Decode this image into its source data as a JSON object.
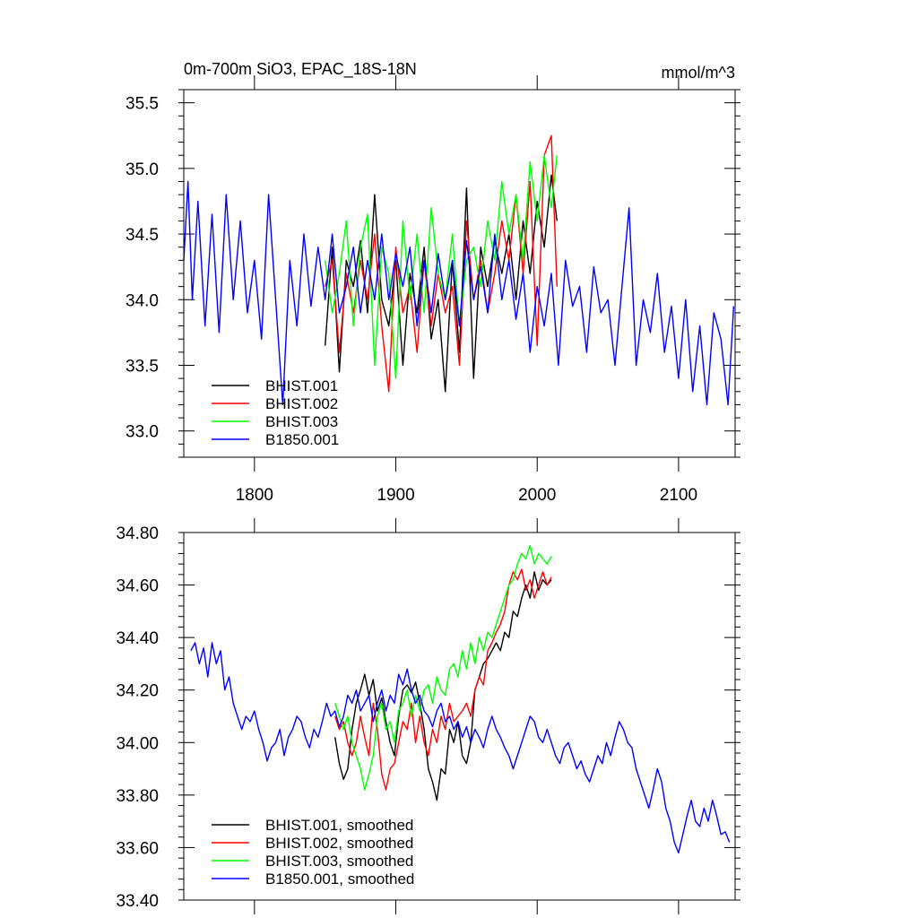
{
  "chart_data": [
    {
      "type": "line",
      "title": "0m-700m SiO3, EPAC_18S-18N",
      "units": "mmol/m^3",
      "xlabel": "",
      "ylabel": "",
      "xlim": [
        1750,
        2140
      ],
      "ylim": [
        32.8,
        35.6
      ],
      "x_ticks": [
        1800,
        1900,
        2000,
        2100
      ],
      "x_tick_labels": [
        "1800",
        "1900",
        "2000",
        "2100"
      ],
      "y_ticks": [
        33.0,
        33.5,
        34.0,
        34.5,
        35.0,
        35.5
      ],
      "y_tick_labels": [
        "33.0",
        "33.5",
        "34.0",
        "34.5",
        "35.0",
        "35.5"
      ],
      "legend_position": "bottom-left",
      "series": [
        {
          "name": "BHIST.001",
          "color": "#000000",
          "x": [
            1850,
            1855,
            1860,
            1865,
            1870,
            1875,
            1880,
            1885,
            1890,
            1895,
            1900,
            1905,
            1910,
            1915,
            1920,
            1925,
            1930,
            1935,
            1940,
            1945,
            1950,
            1955,
            1960,
            1965,
            1970,
            1975,
            1980,
            1985,
            1990,
            1995,
            2000,
            2005,
            2010,
            2014
          ],
          "y": [
            33.65,
            34.4,
            33.45,
            34.3,
            34.1,
            34.45,
            33.9,
            34.8,
            34.0,
            33.8,
            34.3,
            33.5,
            34.2,
            33.9,
            34.4,
            33.7,
            34.0,
            33.3,
            34.3,
            33.6,
            34.85,
            33.4,
            34.4,
            34.1,
            34.45,
            34.2,
            34.5,
            34.0,
            34.6,
            34.2,
            34.75,
            34.4,
            34.95,
            34.6
          ]
        },
        {
          "name": "BHIST.002",
          "color": "#ff0000",
          "x": [
            1850,
            1855,
            1860,
            1865,
            1870,
            1875,
            1880,
            1885,
            1890,
            1895,
            1900,
            1905,
            1910,
            1915,
            1920,
            1925,
            1930,
            1935,
            1940,
            1945,
            1950,
            1955,
            1960,
            1965,
            1970,
            1975,
            1980,
            1985,
            1990,
            1995,
            2000,
            2005,
            2010,
            2014
          ],
          "y": [
            34.1,
            34.3,
            33.6,
            34.2,
            33.9,
            34.3,
            34.0,
            34.5,
            33.8,
            33.3,
            34.4,
            33.9,
            34.1,
            33.6,
            34.3,
            33.8,
            34.2,
            33.9,
            34.1,
            33.5,
            34.6,
            34.0,
            34.3,
            33.9,
            34.2,
            34.6,
            34.3,
            34.8,
            34.2,
            34.9,
            33.65,
            35.1,
            35.25,
            34.1
          ]
        },
        {
          "name": "BHIST.003",
          "color": "#00ff00",
          "x": [
            1850,
            1855,
            1860,
            1865,
            1870,
            1875,
            1880,
            1885,
            1890,
            1895,
            1900,
            1905,
            1910,
            1915,
            1920,
            1925,
            1930,
            1935,
            1940,
            1945,
            1950,
            1955,
            1960,
            1965,
            1970,
            1975,
            1980,
            1985,
            1990,
            1995,
            2000,
            2005,
            2010,
            2014
          ],
          "y": [
            34.3,
            33.9,
            34.2,
            34.6,
            33.8,
            34.4,
            34.65,
            33.5,
            34.4,
            34.2,
            33.4,
            34.6,
            34.0,
            34.5,
            33.9,
            34.7,
            34.2,
            34.0,
            34.5,
            33.8,
            34.3,
            34.4,
            34.1,
            34.6,
            34.3,
            34.9,
            34.5,
            34.8,
            34.3,
            35.05,
            34.6,
            35.1,
            34.7,
            35.1
          ]
        },
        {
          "name": "B1850.001",
          "color": "#0000ff",
          "x": [
            1750,
            1753,
            1756,
            1760,
            1765,
            1770,
            1775,
            1780,
            1785,
            1790,
            1795,
            1800,
            1805,
            1810,
            1815,
            1820,
            1825,
            1830,
            1835,
            1840,
            1845,
            1850,
            1855,
            1860,
            1865,
            1870,
            1875,
            1880,
            1885,
            1890,
            1895,
            1900,
            1905,
            1910,
            1915,
            1920,
            1925,
            1930,
            1935,
            1940,
            1945,
            1950,
            1955,
            1960,
            1965,
            1970,
            1975,
            1980,
            1985,
            1990,
            1995,
            2000,
            2005,
            2010,
            2015,
            2020,
            2025,
            2030,
            2035,
            2040,
            2045,
            2050,
            2055,
            2060,
            2065,
            2070,
            2075,
            2080,
            2085,
            2090,
            2095,
            2100,
            2105,
            2110,
            2115,
            2120,
            2125,
            2130,
            2135,
            2139
          ],
          "y": [
            34.3,
            34.9,
            34.0,
            34.75,
            33.8,
            34.65,
            33.75,
            34.8,
            34.0,
            34.6,
            33.9,
            34.3,
            33.7,
            34.8,
            34.0,
            33.2,
            34.3,
            33.8,
            34.5,
            33.95,
            34.4,
            34.0,
            34.5,
            33.9,
            34.1,
            34.4,
            33.9,
            34.3,
            34.0,
            34.5,
            34.0,
            34.35,
            34.1,
            34.4,
            33.8,
            34.3,
            33.9,
            34.35,
            34.0,
            34.3,
            33.8,
            34.45,
            34.0,
            34.25,
            33.9,
            34.5,
            34.0,
            34.3,
            33.85,
            34.2,
            33.6,
            34.1,
            33.8,
            34.2,
            33.5,
            34.3,
            33.95,
            34.1,
            33.6,
            34.25,
            33.9,
            34.0,
            33.5,
            34.1,
            34.7,
            33.5,
            34.0,
            33.75,
            34.2,
            33.6,
            33.95,
            33.4,
            34.0,
            33.3,
            33.8,
            33.2,
            33.9,
            33.7,
            33.2,
            33.95
          ]
        }
      ]
    },
    {
      "type": "line",
      "title": "",
      "xlabel": "",
      "ylabel": "",
      "xlim": [
        1750,
        2140
      ],
      "ylim": [
        33.4,
        34.8
      ],
      "x_ticks": [
        1800,
        1900,
        2000,
        2100
      ],
      "x_tick_labels": [],
      "y_ticks": [
        33.4,
        33.6,
        33.8,
        34.0,
        34.2,
        34.4,
        34.6,
        34.8
      ],
      "y_tick_labels": [
        "33.40",
        "33.60",
        "33.80",
        "34.00",
        "34.20",
        "34.40",
        "34.60",
        "34.80"
      ],
      "legend_position": "bottom-left",
      "series": [
        {
          "name": "BHIST.001, smoothed",
          "color": "#000000",
          "x": [
            1857,
            1860,
            1863,
            1866,
            1869,
            1872,
            1875,
            1878,
            1881,
            1884,
            1887,
            1890,
            1893,
            1896,
            1899,
            1902,
            1905,
            1908,
            1911,
            1914,
            1917,
            1920,
            1923,
            1926,
            1929,
            1932,
            1935,
            1938,
            1941,
            1944,
            1947,
            1950,
            1953,
            1956,
            1959,
            1962,
            1965,
            1968,
            1971,
            1974,
            1977,
            1980,
            1983,
            1986,
            1989,
            1992,
            1995,
            1998,
            2001,
            2004,
            2007,
            2010
          ],
          "y": [
            34.02,
            33.92,
            33.86,
            33.9,
            34.05,
            34.15,
            34.2,
            34.26,
            34.18,
            34.24,
            34.12,
            34.17,
            34.08,
            34.0,
            33.95,
            34.1,
            34.2,
            34.22,
            34.19,
            34.23,
            34.15,
            34.05,
            33.9,
            33.85,
            33.78,
            33.9,
            33.88,
            34.05,
            34.0,
            34.08,
            33.95,
            33.92,
            34.0,
            34.2,
            34.25,
            34.3,
            34.32,
            34.35,
            34.38,
            34.35,
            34.42,
            34.4,
            34.5,
            34.48,
            34.55,
            34.6,
            34.55,
            34.65,
            34.58,
            34.62,
            34.6,
            34.62
          ]
        },
        {
          "name": "BHIST.002, smoothed",
          "color": "#ff0000",
          "x": [
            1857,
            1860,
            1863,
            1866,
            1869,
            1872,
            1875,
            1878,
            1881,
            1884,
            1887,
            1890,
            1893,
            1896,
            1899,
            1902,
            1905,
            1908,
            1911,
            1914,
            1917,
            1920,
            1923,
            1926,
            1929,
            1932,
            1935,
            1938,
            1941,
            1944,
            1947,
            1950,
            1953,
            1956,
            1959,
            1962,
            1965,
            1968,
            1971,
            1974,
            1977,
            1980,
            1983,
            1986,
            1989,
            1992,
            1995,
            1998,
            2001,
            2004,
            2007,
            2010
          ],
          "y": [
            34.1,
            34.05,
            34.08,
            34.0,
            33.95,
            34.0,
            34.1,
            34.02,
            33.95,
            34.15,
            34.05,
            33.88,
            33.82,
            33.9,
            33.92,
            34.0,
            34.08,
            34.05,
            34.15,
            34.0,
            34.1,
            34.0,
            33.95,
            34.05,
            34.0,
            34.1,
            34.05,
            34.15,
            34.08,
            34.1,
            34.12,
            34.15,
            34.1,
            34.2,
            34.25,
            34.22,
            34.35,
            34.38,
            34.42,
            34.45,
            34.5,
            34.6,
            34.65,
            34.62,
            34.66,
            34.58,
            34.62,
            34.55,
            34.6,
            34.65,
            34.6,
            34.63
          ]
        },
        {
          "name": "BHIST.003, smoothed",
          "color": "#00ff00",
          "x": [
            1857,
            1860,
            1863,
            1866,
            1869,
            1872,
            1875,
            1878,
            1881,
            1884,
            1887,
            1890,
            1893,
            1896,
            1899,
            1902,
            1905,
            1908,
            1911,
            1914,
            1917,
            1920,
            1923,
            1926,
            1929,
            1932,
            1935,
            1938,
            1941,
            1944,
            1947,
            1950,
            1953,
            1956,
            1959,
            1962,
            1965,
            1968,
            1971,
            1974,
            1977,
            1980,
            1983,
            1986,
            1989,
            1992,
            1995,
            1998,
            2001,
            2004,
            2007,
            2010
          ],
          "y": [
            34.15,
            34.1,
            34.05,
            34.1,
            34.0,
            33.95,
            33.9,
            33.82,
            33.88,
            33.95,
            34.1,
            34.15,
            34.05,
            34.08,
            34.0,
            34.12,
            34.15,
            34.2,
            34.1,
            34.18,
            34.12,
            34.2,
            34.22,
            34.15,
            34.25,
            34.2,
            34.18,
            34.28,
            34.3,
            34.25,
            34.35,
            34.28,
            34.38,
            34.3,
            34.4,
            34.35,
            34.42,
            34.4,
            34.45,
            34.5,
            34.55,
            34.6,
            34.62,
            34.68,
            34.72,
            34.7,
            34.75,
            34.68,
            34.72,
            34.7,
            34.68,
            34.71
          ]
        },
        {
          "name": "B1850.001, smoothed",
          "color": "#0000ff",
          "x": [
            1755,
            1758,
            1761,
            1764,
            1767,
            1770,
            1773,
            1776,
            1779,
            1782,
            1785,
            1788,
            1791,
            1794,
            1797,
            1800,
            1803,
            1806,
            1809,
            1812,
            1815,
            1818,
            1821,
            1824,
            1827,
            1830,
            1833,
            1836,
            1839,
            1842,
            1845,
            1848,
            1851,
            1854,
            1857,
            1860,
            1863,
            1866,
            1869,
            1872,
            1875,
            1878,
            1881,
            1884,
            1887,
            1890,
            1893,
            1896,
            1899,
            1902,
            1905,
            1908,
            1911,
            1914,
            1917,
            1920,
            1923,
            1926,
            1929,
            1932,
            1935,
            1938,
            1941,
            1944,
            1947,
            1950,
            1953,
            1956,
            1959,
            1962,
            1965,
            1968,
            1971,
            1974,
            1977,
            1980,
            1983,
            1986,
            1989,
            1992,
            1995,
            1998,
            2001,
            2004,
            2007,
            2010,
            2013,
            2016,
            2019,
            2022,
            2025,
            2028,
            2031,
            2034,
            2037,
            2040,
            2043,
            2046,
            2049,
            2052,
            2055,
            2058,
            2061,
            2064,
            2067,
            2070,
            2073,
            2076,
            2079,
            2082,
            2085,
            2088,
            2091,
            2094,
            2097,
            2100,
            2103,
            2106,
            2109,
            2112,
            2115,
            2118,
            2121,
            2124,
            2127,
            2130,
            2133,
            2136
          ],
          "y": [
            34.35,
            34.38,
            34.3,
            34.36,
            34.25,
            34.38,
            34.3,
            34.35,
            34.2,
            34.25,
            34.15,
            34.1,
            34.05,
            34.1,
            34.08,
            34.12,
            34.05,
            34.0,
            33.93,
            33.98,
            34.0,
            34.05,
            33.95,
            34.02,
            34.05,
            34.1,
            34.08,
            34.02,
            33.98,
            34.05,
            34.02,
            34.08,
            34.15,
            34.1,
            34.12,
            34.06,
            34.1,
            34.18,
            34.15,
            34.2,
            34.12,
            34.15,
            34.18,
            34.08,
            34.15,
            34.2,
            34.12,
            34.18,
            34.15,
            34.26,
            34.22,
            34.28,
            34.2,
            34.15,
            34.18,
            34.12,
            34.1,
            34.06,
            34.12,
            34.15,
            34.08,
            34.1,
            34.05,
            34.08,
            34.02,
            34.06,
            34.0,
            34.05,
            34.02,
            33.98,
            34.05,
            34.1,
            34.05,
            34.02,
            33.98,
            33.95,
            33.9,
            33.95,
            34.0,
            34.05,
            34.1,
            34.08,
            34.02,
            34.0,
            34.05,
            34.0,
            33.95,
            33.92,
            33.98,
            34.0,
            33.95,
            33.9,
            33.93,
            33.88,
            33.85,
            33.9,
            33.95,
            33.92,
            34.0,
            33.95,
            34.02,
            34.08,
            34.05,
            34.0,
            33.98,
            33.9,
            33.85,
            33.8,
            33.75,
            33.82,
            33.9,
            33.85,
            33.75,
            33.7,
            33.62,
            33.58,
            33.65,
            33.72,
            33.78,
            33.7,
            33.68,
            33.75,
            33.7,
            33.78,
            33.72,
            33.65,
            33.66,
            33.62
          ]
        }
      ]
    }
  ]
}
